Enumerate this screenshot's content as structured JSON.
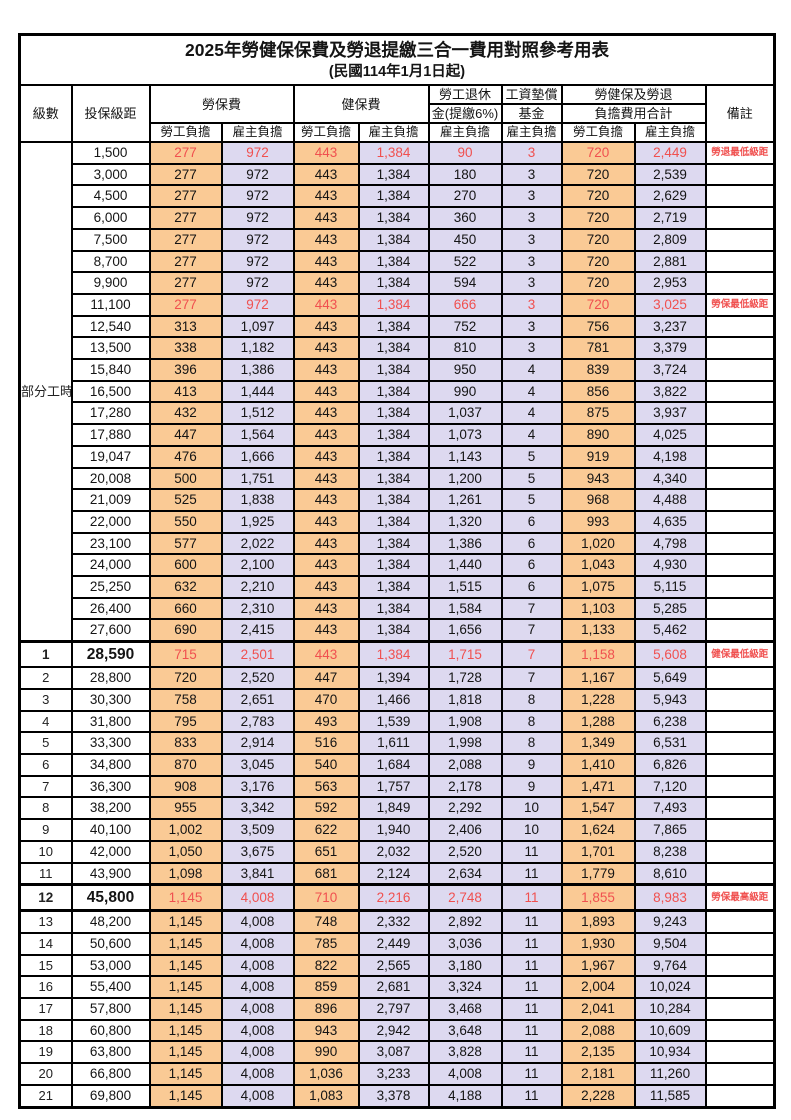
{
  "title": "2025年勞健保保費及勞退提繳三合一費用對照參考用表",
  "subtitle": "(民國114年1月1日起)",
  "header": {
    "level": "級數",
    "bracket": "投保級距",
    "labor_ins": "勞保費",
    "health_ins": "健保費",
    "pension_line1": "勞工退休",
    "pension_line2": "金(提繳6%)",
    "fund_line1": "工資墊償",
    "fund_line2": "基金",
    "total_line1": "勞健保及勞退",
    "total_line2": "負擔費用合計",
    "remark": "備註",
    "employee": "勞工負擔",
    "employer": "雇主負擔"
  },
  "colors": {
    "employee_bg": "#FACA95",
    "employer_bg": "#DDD9F0",
    "highlight_red": "#F0504F",
    "border": "#000000"
  },
  "sections": {
    "part_time_label": "部分工時",
    "part_time_rows": 23
  },
  "rows": [
    {
      "level": "",
      "bracket": "1,500",
      "v": [
        "277",
        "972",
        "443",
        "1,384",
        "90",
        "3",
        "720",
        "2,449"
      ],
      "remark": "勞退最低級距",
      "red": true
    },
    {
      "level": "",
      "bracket": "3,000",
      "v": [
        "277",
        "972",
        "443",
        "1,384",
        "180",
        "3",
        "720",
        "2,539"
      ]
    },
    {
      "level": "",
      "bracket": "4,500",
      "v": [
        "277",
        "972",
        "443",
        "1,384",
        "270",
        "3",
        "720",
        "2,629"
      ]
    },
    {
      "level": "",
      "bracket": "6,000",
      "v": [
        "277",
        "972",
        "443",
        "1,384",
        "360",
        "3",
        "720",
        "2,719"
      ]
    },
    {
      "level": "",
      "bracket": "7,500",
      "v": [
        "277",
        "972",
        "443",
        "1,384",
        "450",
        "3",
        "720",
        "2,809"
      ]
    },
    {
      "level": "",
      "bracket": "8,700",
      "v": [
        "277",
        "972",
        "443",
        "1,384",
        "522",
        "3",
        "720",
        "2,881"
      ]
    },
    {
      "level": "",
      "bracket": "9,900",
      "v": [
        "277",
        "972",
        "443",
        "1,384",
        "594",
        "3",
        "720",
        "2,953"
      ]
    },
    {
      "level": "",
      "bracket": "11,100",
      "v": [
        "277",
        "972",
        "443",
        "1,384",
        "666",
        "3",
        "720",
        "3,025"
      ],
      "remark": "勞保最低級距",
      "red": true
    },
    {
      "level": "",
      "bracket": "12,540",
      "v": [
        "313",
        "1,097",
        "443",
        "1,384",
        "752",
        "3",
        "756",
        "3,237"
      ]
    },
    {
      "level": "",
      "bracket": "13,500",
      "v": [
        "338",
        "1,182",
        "443",
        "1,384",
        "810",
        "3",
        "781",
        "3,379"
      ]
    },
    {
      "level": "",
      "bracket": "15,840",
      "v": [
        "396",
        "1,386",
        "443",
        "1,384",
        "950",
        "4",
        "839",
        "3,724"
      ]
    },
    {
      "level": "",
      "bracket": "16,500",
      "v": [
        "413",
        "1,444",
        "443",
        "1,384",
        "990",
        "4",
        "856",
        "3,822"
      ]
    },
    {
      "level": "",
      "bracket": "17,280",
      "v": [
        "432",
        "1,512",
        "443",
        "1,384",
        "1,037",
        "4",
        "875",
        "3,937"
      ]
    },
    {
      "level": "",
      "bracket": "17,880",
      "v": [
        "447",
        "1,564",
        "443",
        "1,384",
        "1,073",
        "4",
        "890",
        "4,025"
      ]
    },
    {
      "level": "",
      "bracket": "19,047",
      "v": [
        "476",
        "1,666",
        "443",
        "1,384",
        "1,143",
        "5",
        "919",
        "4,198"
      ]
    },
    {
      "level": "",
      "bracket": "20,008",
      "v": [
        "500",
        "1,751",
        "443",
        "1,384",
        "1,200",
        "5",
        "943",
        "4,340"
      ]
    },
    {
      "level": "",
      "bracket": "21,009",
      "v": [
        "525",
        "1,838",
        "443",
        "1,384",
        "1,261",
        "5",
        "968",
        "4,488"
      ]
    },
    {
      "level": "",
      "bracket": "22,000",
      "v": [
        "550",
        "1,925",
        "443",
        "1,384",
        "1,320",
        "6",
        "993",
        "4,635"
      ]
    },
    {
      "level": "",
      "bracket": "23,100",
      "v": [
        "577",
        "2,022",
        "443",
        "1,384",
        "1,386",
        "6",
        "1,020",
        "4,798"
      ]
    },
    {
      "level": "",
      "bracket": "24,000",
      "v": [
        "600",
        "2,100",
        "443",
        "1,384",
        "1,440",
        "6",
        "1,043",
        "4,930"
      ]
    },
    {
      "level": "",
      "bracket": "25,250",
      "v": [
        "632",
        "2,210",
        "443",
        "1,384",
        "1,515",
        "6",
        "1,075",
        "5,115"
      ]
    },
    {
      "level": "",
      "bracket": "26,400",
      "v": [
        "660",
        "2,310",
        "443",
        "1,384",
        "1,584",
        "7",
        "1,103",
        "5,285"
      ]
    },
    {
      "level": "",
      "bracket": "27,600",
      "v": [
        "690",
        "2,415",
        "443",
        "1,384",
        "1,656",
        "7",
        "1,133",
        "5,462"
      ]
    },
    {
      "level": "1",
      "bracket": "28,590",
      "v": [
        "715",
        "2,501",
        "443",
        "1,384",
        "1,715",
        "7",
        "1,158",
        "5,608"
      ],
      "remark": "健保最低級距",
      "red": true,
      "em": true,
      "tt": true
    },
    {
      "level": "2",
      "bracket": "28,800",
      "v": [
        "720",
        "2,520",
        "447",
        "1,394",
        "1,728",
        "7",
        "1,167",
        "5,649"
      ]
    },
    {
      "level": "3",
      "bracket": "30,300",
      "v": [
        "758",
        "2,651",
        "470",
        "1,466",
        "1,818",
        "8",
        "1,228",
        "5,943"
      ]
    },
    {
      "level": "4",
      "bracket": "31,800",
      "v": [
        "795",
        "2,783",
        "493",
        "1,539",
        "1,908",
        "8",
        "1,288",
        "6,238"
      ]
    },
    {
      "level": "5",
      "bracket": "33,300",
      "v": [
        "833",
        "2,914",
        "516",
        "1,611",
        "1,998",
        "8",
        "1,349",
        "6,531"
      ]
    },
    {
      "level": "6",
      "bracket": "34,800",
      "v": [
        "870",
        "3,045",
        "540",
        "1,684",
        "2,088",
        "9",
        "1,410",
        "6,826"
      ]
    },
    {
      "level": "7",
      "bracket": "36,300",
      "v": [
        "908",
        "3,176",
        "563",
        "1,757",
        "2,178",
        "9",
        "1,471",
        "7,120"
      ]
    },
    {
      "level": "8",
      "bracket": "38,200",
      "v": [
        "955",
        "3,342",
        "592",
        "1,849",
        "2,292",
        "10",
        "1,547",
        "7,493"
      ]
    },
    {
      "level": "9",
      "bracket": "40,100",
      "v": [
        "1,002",
        "3,509",
        "622",
        "1,940",
        "2,406",
        "10",
        "1,624",
        "7,865"
      ]
    },
    {
      "level": "10",
      "bracket": "42,000",
      "v": [
        "1,050",
        "3,675",
        "651",
        "2,032",
        "2,520",
        "11",
        "1,701",
        "8,238"
      ]
    },
    {
      "level": "11",
      "bracket": "43,900",
      "v": [
        "1,098",
        "3,841",
        "681",
        "2,124",
        "2,634",
        "11",
        "1,779",
        "8,610"
      ]
    },
    {
      "level": "12",
      "bracket": "45,800",
      "v": [
        "1,145",
        "4,008",
        "710",
        "2,216",
        "2,748",
        "11",
        "1,855",
        "8,983"
      ],
      "remark": "勞保最高級距",
      "red": true,
      "em": true,
      "tt": true,
      "tb": true
    },
    {
      "level": "13",
      "bracket": "48,200",
      "v": [
        "1,145",
        "4,008",
        "748",
        "2,332",
        "2,892",
        "11",
        "1,893",
        "9,243"
      ]
    },
    {
      "level": "14",
      "bracket": "50,600",
      "v": [
        "1,145",
        "4,008",
        "785",
        "2,449",
        "3,036",
        "11",
        "1,930",
        "9,504"
      ]
    },
    {
      "level": "15",
      "bracket": "53,000",
      "v": [
        "1,145",
        "4,008",
        "822",
        "2,565",
        "3,180",
        "11",
        "1,967",
        "9,764"
      ]
    },
    {
      "level": "16",
      "bracket": "55,400",
      "v": [
        "1,145",
        "4,008",
        "859",
        "2,681",
        "3,324",
        "11",
        "2,004",
        "10,024"
      ]
    },
    {
      "level": "17",
      "bracket": "57,800",
      "v": [
        "1,145",
        "4,008",
        "896",
        "2,797",
        "3,468",
        "11",
        "2,041",
        "10,284"
      ]
    },
    {
      "level": "18",
      "bracket": "60,800",
      "v": [
        "1,145",
        "4,008",
        "943",
        "2,942",
        "3,648",
        "11",
        "2,088",
        "10,609"
      ]
    },
    {
      "level": "19",
      "bracket": "63,800",
      "v": [
        "1,145",
        "4,008",
        "990",
        "3,087",
        "3,828",
        "11",
        "2,135",
        "10,934"
      ]
    },
    {
      "level": "20",
      "bracket": "66,800",
      "v": [
        "1,145",
        "4,008",
        "1,036",
        "3,233",
        "4,008",
        "11",
        "2,181",
        "11,260"
      ]
    },
    {
      "level": "21",
      "bracket": "69,800",
      "v": [
        "1,145",
        "4,008",
        "1,083",
        "3,378",
        "4,188",
        "11",
        "2,228",
        "11,585"
      ]
    }
  ]
}
